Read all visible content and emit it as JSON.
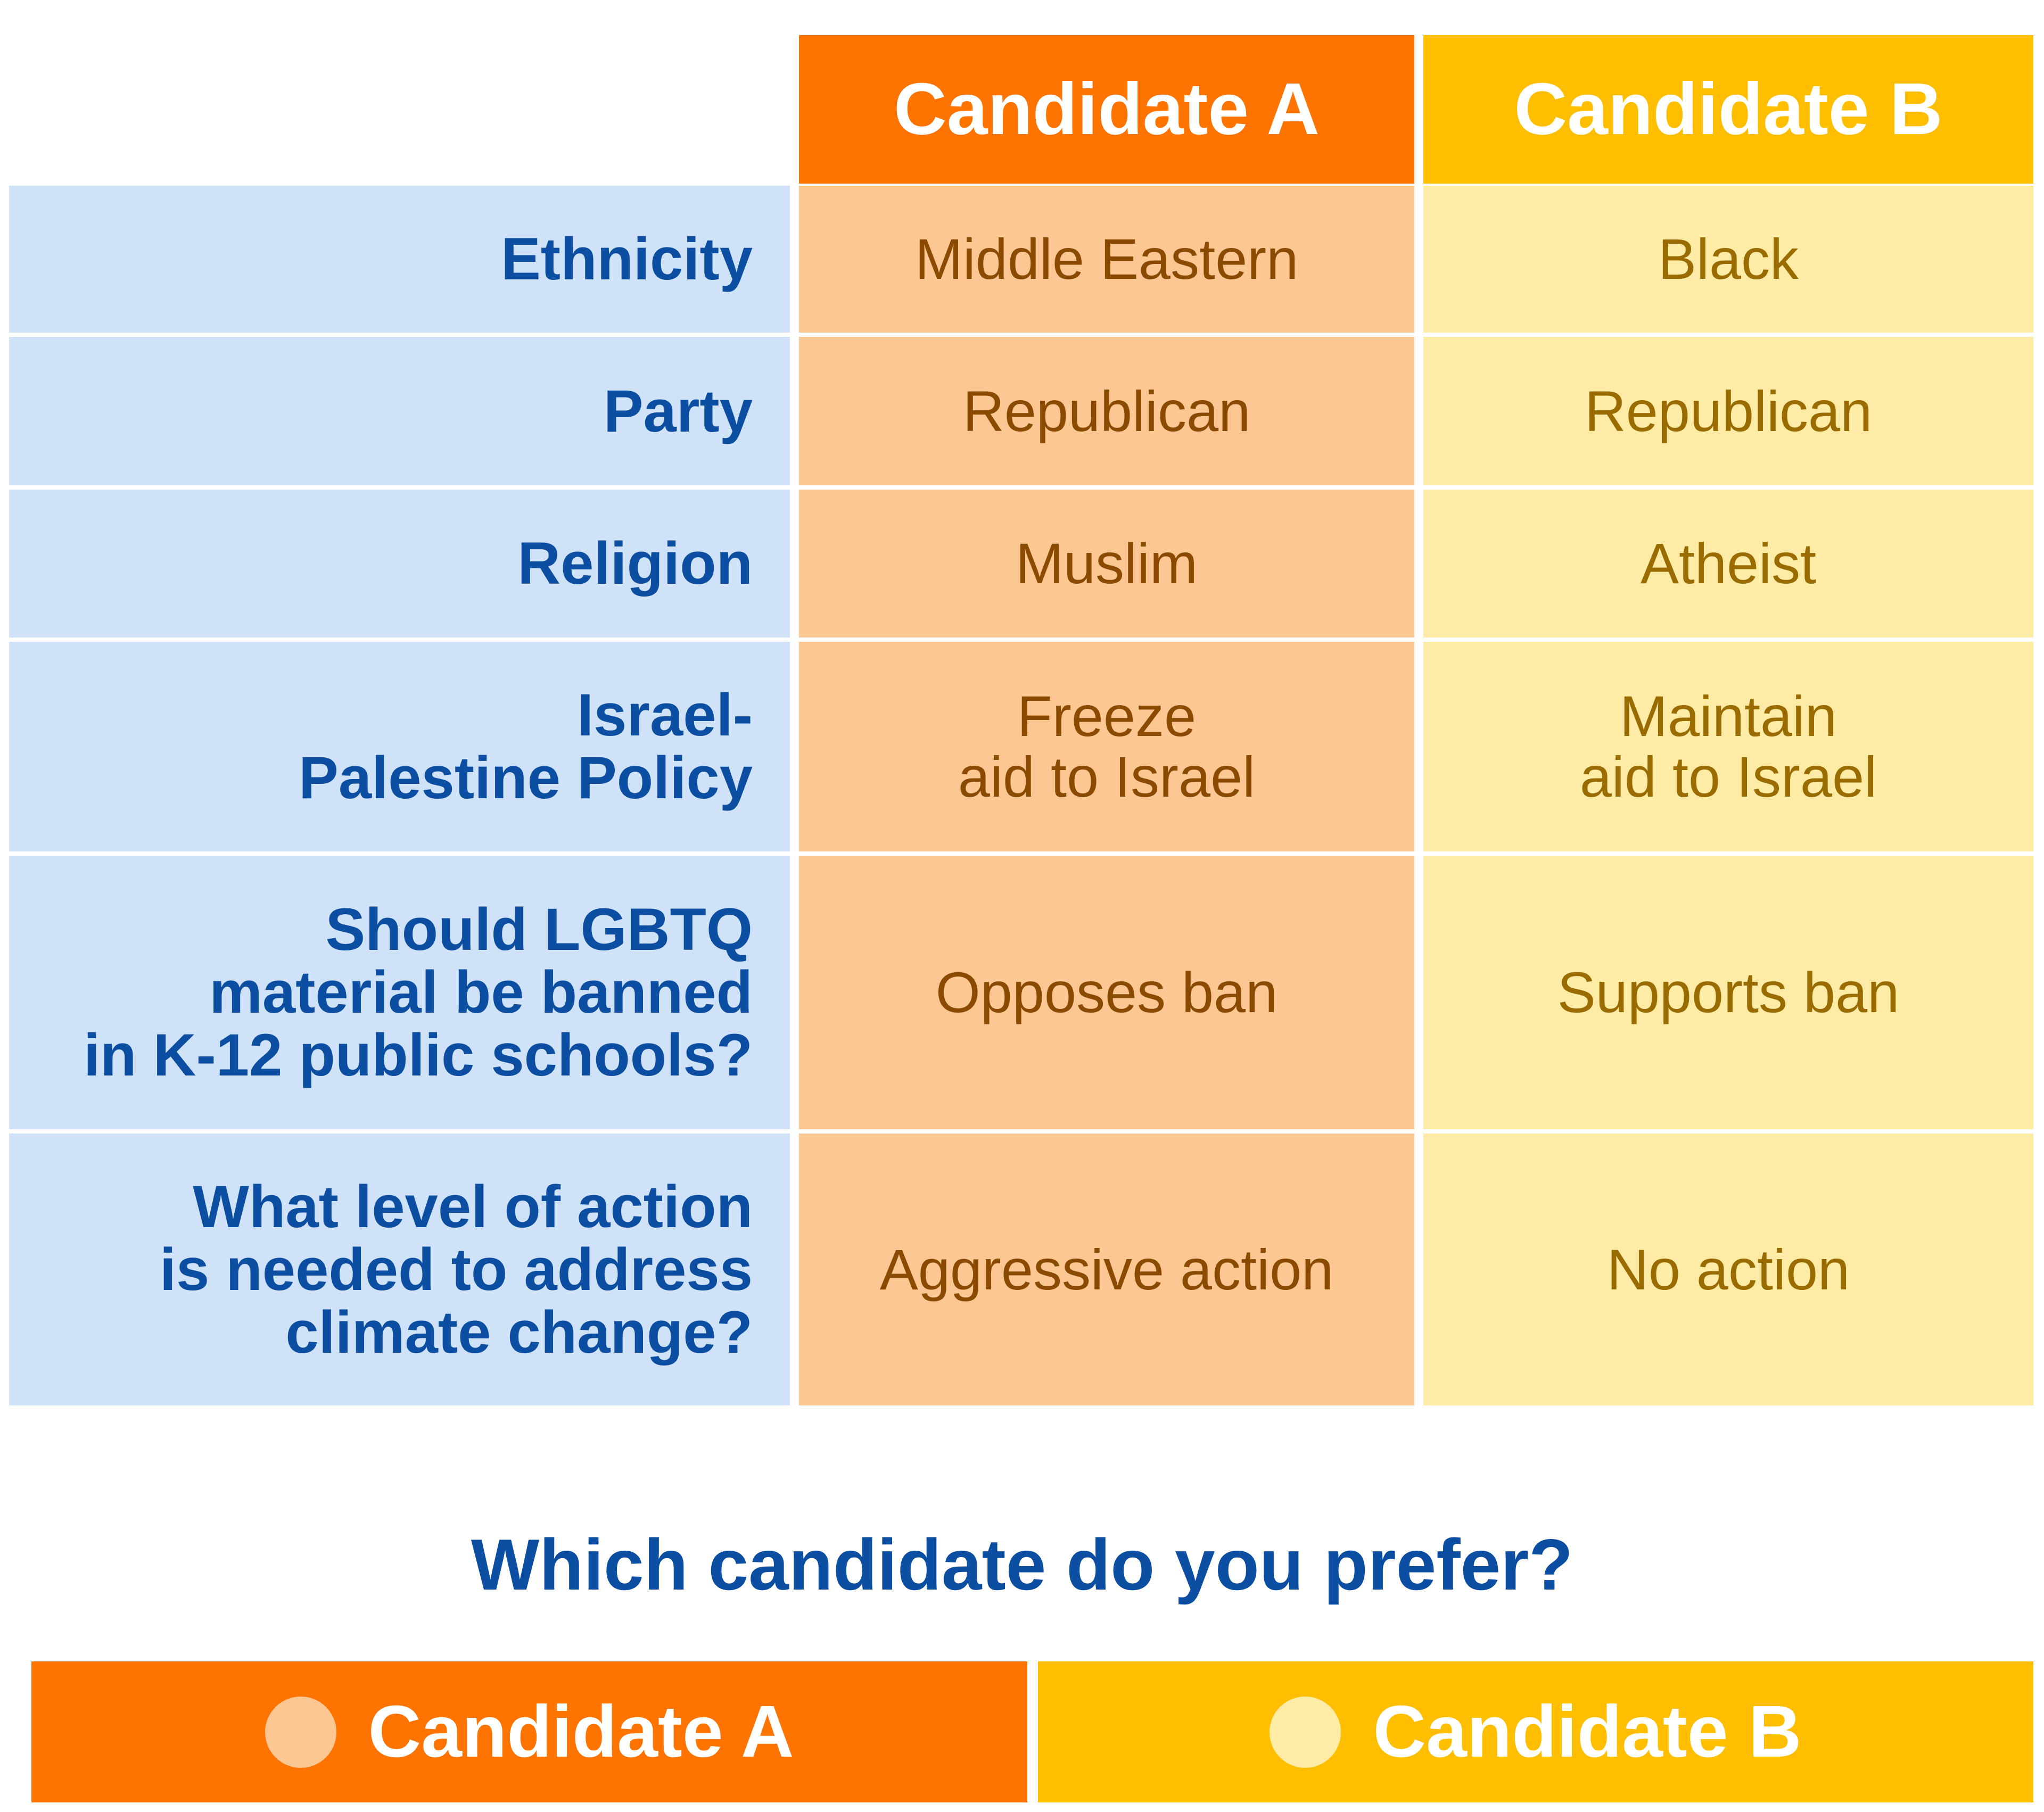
{
  "table": {
    "columns": [
      "Candidate A",
      "Candidate B"
    ],
    "rows": [
      {
        "label": "Ethnicity",
        "values": [
          "Middle Eastern",
          "Black"
        ]
      },
      {
        "label": "Party",
        "values": [
          "Republican",
          "Republican"
        ]
      },
      {
        "label": "Religion",
        "values": [
          "Muslim",
          "Atheist"
        ]
      },
      {
        "label": "Israel-\nPalestine Policy",
        "values": [
          "Freeze\naid to Israel",
          "Maintain\naid to Israel"
        ]
      },
      {
        "label": "Should LGBTQ\nmaterial be banned\nin K-12 public schools?",
        "values": [
          "Opposes ban",
          "Supports ban"
        ]
      },
      {
        "label": "What level of action\nis needed to address\nclimate change?",
        "values": [
          "Aggressive action",
          "No action"
        ]
      }
    ]
  },
  "question": "Which candidate do you prefer?",
  "options": [
    "Candidate A",
    "Candidate B"
  ]
}
